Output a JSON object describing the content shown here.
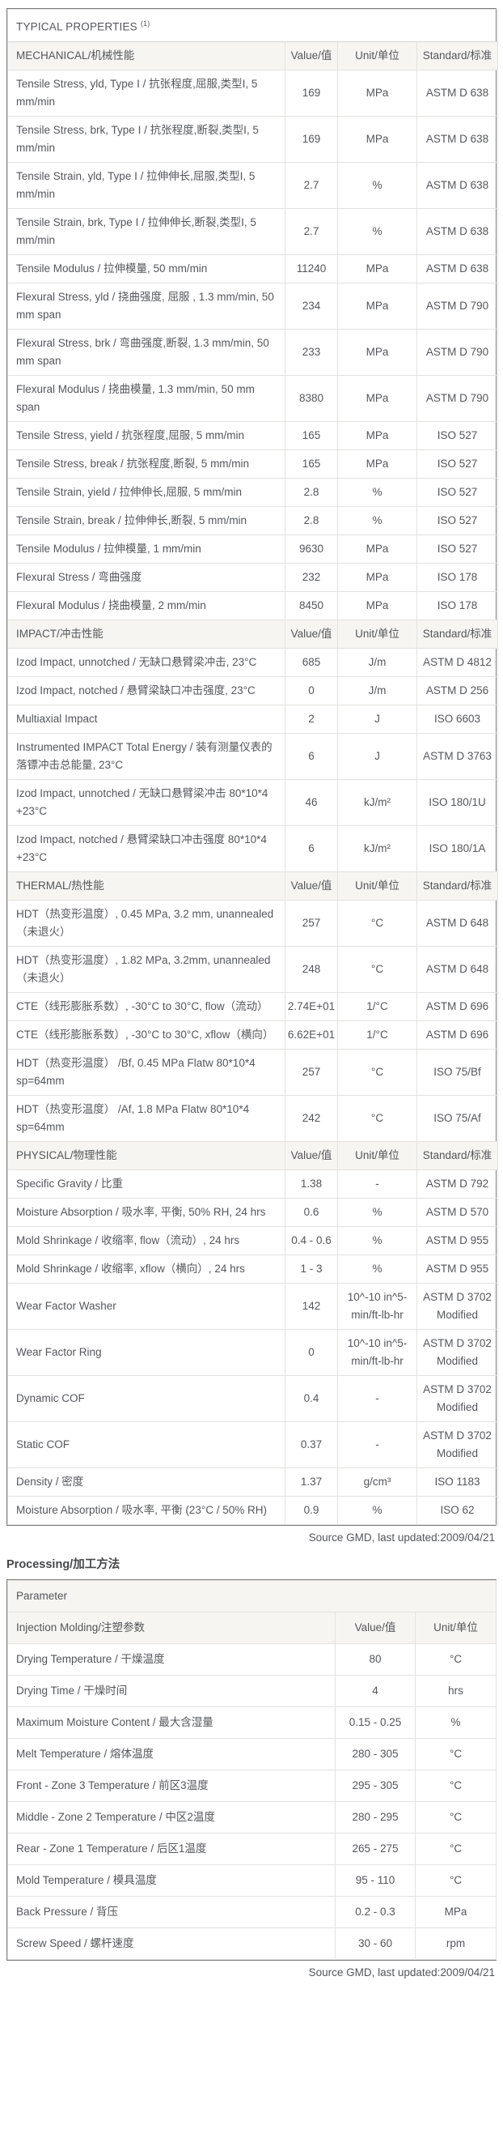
{
  "typical_properties": {
    "title": "TYPICAL PROPERTIES",
    "footnote_marker": "(1)",
    "value_header": "Value/值",
    "unit_header": "Unit/单位",
    "standard_header": "Standard/标准",
    "source": "Source GMD, last updated:2009/04/21",
    "sections": [
      {
        "label": "MECHANICAL/机械性能",
        "rows": [
          {
            "property": "Tensile Stress, yld, Type I / 抗张程度,屈服,类型I, 5 mm/min",
            "value": "169",
            "unit": "MPa",
            "standard": "ASTM D 638"
          },
          {
            "property": "Tensile Stress, brk, Type I / 抗张程度,断裂,类型I, 5 mm/min",
            "value": "169",
            "unit": "MPa",
            "standard": "ASTM D 638"
          },
          {
            "property": "Tensile Strain, yld, Type I / 拉伸伸长,屈服,类型I, 5 mm/min",
            "value": "2.7",
            "unit": "%",
            "standard": "ASTM D 638"
          },
          {
            "property": "Tensile Strain, brk, Type I / 拉伸伸长,断裂,类型I, 5 mm/min",
            "value": "2.7",
            "unit": "%",
            "standard": "ASTM D 638"
          },
          {
            "property": "Tensile Modulus / 拉伸模量, 50 mm/min",
            "value": "11240",
            "unit": "MPa",
            "standard": "ASTM D 638"
          },
          {
            "property": "Flexural Stress, yld / 挠曲强度, 屈服 , 1.3 mm/min, 50 mm span",
            "value": "234",
            "unit": "MPa",
            "standard": "ASTM D 790"
          },
          {
            "property": "Flexural Stress, brk / 弯曲强度,断裂, 1.3 mm/min, 50 mm span",
            "value": "233",
            "unit": "MPa",
            "standard": "ASTM D 790"
          },
          {
            "property": "Flexural Modulus / 挠曲模量, 1.3 mm/min, 50 mm span",
            "value": "8380",
            "unit": "MPa",
            "standard": "ASTM D 790"
          },
          {
            "property": "Tensile Stress, yield / 抗张程度,屈服, 5 mm/min",
            "value": "165",
            "unit": "MPa",
            "standard": "ISO 527"
          },
          {
            "property": "Tensile Stress, break / 抗张程度,断裂, 5 mm/min",
            "value": "165",
            "unit": "MPa",
            "standard": "ISO 527"
          },
          {
            "property": "Tensile Strain, yield / 拉伸伸长,屈服, 5 mm/min",
            "value": "2.8",
            "unit": "%",
            "standard": "ISO 527"
          },
          {
            "property": "Tensile Strain, break / 拉伸伸长,断裂, 5 mm/min",
            "value": "2.8",
            "unit": "%",
            "standard": "ISO 527"
          },
          {
            "property": "Tensile Modulus / 拉伸模量, 1 mm/min",
            "value": "9630",
            "unit": "MPa",
            "standard": "ISO 527"
          },
          {
            "property": "Flexural Stress / 弯曲强度",
            "value": "232",
            "unit": "MPa",
            "standard": "ISO 178"
          },
          {
            "property": "Flexural Modulus / 挠曲模量, 2 mm/min",
            "value": "8450",
            "unit": "MPa",
            "standard": "ISO 178"
          }
        ]
      },
      {
        "label": "IMPACT/冲击性能",
        "rows": [
          {
            "property": "Izod Impact, unnotched / 无缺口悬臂梁冲击, 23°C",
            "value": "685",
            "unit": "J/m",
            "standard": "ASTM D 4812"
          },
          {
            "property": "Izod Impact, notched / 悬臂梁缺口冲击强度, 23°C",
            "value": "0",
            "unit": "J/m",
            "standard": "ASTM D 256"
          },
          {
            "property": "Multiaxial Impact",
            "value": "2",
            "unit": "J",
            "standard": "ISO 6603"
          },
          {
            "property": "Instrumented IMPACT Total Energy / 装有测量仪表的落镖冲击总能量, 23°C",
            "value": "6",
            "unit": "J",
            "standard": "ASTM D 3763"
          },
          {
            "property": "Izod Impact, unnotched / 无缺口悬臂梁冲击 80*10*4 +23°C",
            "value": "46",
            "unit": "kJ/m²",
            "standard": "ISO 180/1U"
          },
          {
            "property": "Izod Impact, notched / 悬臂梁缺口冲击强度 80*10*4 +23°C",
            "value": "6",
            "unit": "kJ/m²",
            "standard": "ISO 180/1A"
          }
        ]
      },
      {
        "label": "THERMAL/热性能",
        "rows": [
          {
            "property": "HDT（热变形温度）, 0.45 MPa, 3.2 mm, unannealed（未退火）",
            "value": "257",
            "unit": "°C",
            "standard": "ASTM D 648"
          },
          {
            "property": "HDT（热变形温度）, 1.82 MPa, 3.2mm, unannealed（未退火）",
            "value": "248",
            "unit": "°C",
            "standard": "ASTM D 648"
          },
          {
            "property": "CTE（线形膨胀系数）, -30°C to 30°C, flow（流动）",
            "value": "2.74E+01",
            "unit": "1/°C",
            "standard": "ASTM D 696"
          },
          {
            "property": "CTE（线形膨胀系数）, -30°C to 30°C, xflow（横向）",
            "value": "6.62E+01",
            "unit": "1/°C",
            "standard": "ASTM D 696"
          },
          {
            "property": "HDT（热变形温度） /Bf, 0.45 MPa Flatw 80*10*4 sp=64mm",
            "value": "257",
            "unit": "°C",
            "standard": "ISO 75/Bf"
          },
          {
            "property": "HDT（热变形温度） /Af, 1.8 MPa Flatw 80*10*4 sp=64mm",
            "value": "242",
            "unit": "°C",
            "standard": "ISO 75/Af"
          }
        ]
      },
      {
        "label": "PHYSICAL/物理性能",
        "rows": [
          {
            "property": "Specific Gravity / 比重",
            "value": "1.38",
            "unit": "-",
            "standard": "ASTM D 792"
          },
          {
            "property": "Moisture Absorption / 吸水率, 平衡, 50% RH, 24 hrs",
            "value": "0.6",
            "unit": "%",
            "standard": "ASTM D 570"
          },
          {
            "property": "Mold Shrinkage / 收缩率, flow（流动）, 24 hrs",
            "value": "0.4 - 0.6",
            "unit": "%",
            "standard": "ASTM D 955"
          },
          {
            "property": "Mold Shrinkage / 收缩率, xflow（横向）, 24 hrs",
            "value": "1 - 3",
            "unit": "%",
            "standard": "ASTM D 955"
          },
          {
            "property": "Wear Factor Washer",
            "value": "142",
            "unit": "10^-10 in^5-min/ft-lb-hr",
            "standard": "ASTM D 3702 Modified"
          },
          {
            "property": "Wear Factor Ring",
            "value": "0",
            "unit": "10^-10 in^5-min/ft-lb-hr",
            "standard": "ASTM D 3702 Modified"
          },
          {
            "property": "Dynamic COF",
            "value": "0.4",
            "unit": "-",
            "standard": "ASTM D 3702 Modified"
          },
          {
            "property": "Static COF",
            "value": "0.37",
            "unit": "-",
            "standard": "ASTM D 3702 Modified"
          },
          {
            "property": "Density / 密度",
            "value": "1.37",
            "unit": "g/cm³",
            "standard": "ISO 1183"
          },
          {
            "property": "Moisture Absorption / 吸水率, 平衡 (23°C / 50% RH)",
            "value": "0.9",
            "unit": "%",
            "standard": "ISO 62"
          }
        ]
      }
    ]
  },
  "processing": {
    "heading": "Processing/加工方法",
    "parameter_header": "Parameter",
    "group_header": "Injection Molding/注塑参数",
    "value_header": "Value/值",
    "unit_header": "Unit/单位",
    "source": "Source GMD, last updated:2009/04/21",
    "rows": [
      {
        "parameter": "Drying Temperature / 干燥温度",
        "value": "80",
        "unit": "°C"
      },
      {
        "parameter": "Drying Time / 干燥时间",
        "value": "4",
        "unit": "hrs"
      },
      {
        "parameter": "Maximum Moisture Content / 最大含湿量",
        "value": "0.15 - 0.25",
        "unit": "%"
      },
      {
        "parameter": "Melt Temperature / 熔体温度",
        "value": "280 - 305",
        "unit": "°C"
      },
      {
        "parameter": "Front - Zone 3 Temperature / 前区3温度",
        "value": "295 - 305",
        "unit": "°C"
      },
      {
        "parameter": "Middle - Zone 2 Temperature / 中区2温度",
        "value": "280 - 295",
        "unit": "°C"
      },
      {
        "parameter": "Rear - Zone 1 Temperature / 后区1温度",
        "value": "265 - 275",
        "unit": "°C"
      },
      {
        "parameter": "Mold Temperature / 模具温度",
        "value": "95 - 110",
        "unit": "°C"
      },
      {
        "parameter": "Back Pressure / 背压",
        "value": "0.2 - 0.3",
        "unit": "MPa"
      },
      {
        "parameter": "Screw Speed / 螺杆速度",
        "value": "30 - 60",
        "unit": "rpm"
      }
    ]
  }
}
